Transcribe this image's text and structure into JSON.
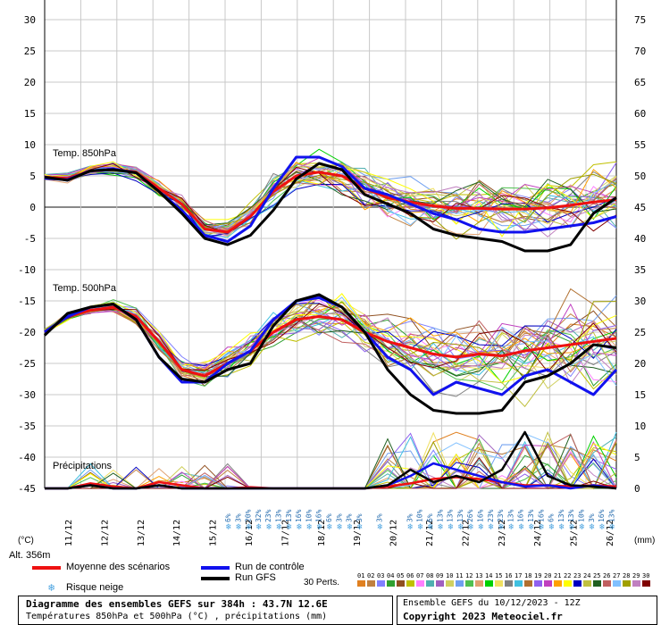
{
  "chart_data": {
    "type": "line",
    "title": "Diagramme des ensembles GEFS sur 384h : 43.7N 12.6E",
    "subtitle": "Températures 850hPa et 500hPa (°C) , précipitations (mm)",
    "x_labels": [
      "11/12",
      "12/12",
      "13/12",
      "14/12",
      "15/12",
      "16/12",
      "17/12",
      "18/12",
      "19/12",
      "20/12",
      "21/12",
      "22/12",
      "23/12",
      "24/12",
      "25/12",
      "26/12"
    ],
    "left_axis": {
      "label": "(°C)",
      "ticks": [
        "30",
        "25",
        "20",
        "15",
        "10",
        "5",
        "0",
        "-5",
        "-10",
        "-15",
        "-20",
        "-25",
        "-30",
        "-35",
        "-40",
        "-45"
      ],
      "range": [
        -45,
        30
      ]
    },
    "right_axis": {
      "label": "(mm)",
      "ticks": [
        "75",
        "70",
        "65",
        "60",
        "55",
        "50",
        "45",
        "40",
        "35",
        "30",
        "25",
        "20",
        "15",
        "10",
        "5",
        "0"
      ],
      "range": [
        0,
        75
      ]
    },
    "panel_labels": {
      "t850": "Temp. 850hPa",
      "t500": "Temp. 500hPa",
      "precip": "Précipitations"
    },
    "altitude": "Alt. 356m",
    "series": [
      {
        "name": "Moyenne des scénarios",
        "panel": "t850",
        "color": "#ee1111",
        "values": [
          4.8,
          4.6,
          5.8,
          6.0,
          5.6,
          3.0,
          0.5,
          -3.5,
          -4.0,
          -1.5,
          2.5,
          5.0,
          5.6,
          5.0,
          3.0,
          1.5,
          0.8,
          0.2,
          -0.2,
          -0.2,
          -0.3,
          -0.3,
          -0.1,
          0.3,
          0.8,
          1.2
        ]
      },
      {
        "name": "Run de contrôle",
        "panel": "t850",
        "color": "#1111ee",
        "values": [
          4.6,
          4.4,
          5.8,
          6.1,
          5.5,
          2.5,
          -0.5,
          -4.5,
          -5.5,
          -3.0,
          3.0,
          8.0,
          8.0,
          6.5,
          3.0,
          2.0,
          0.5,
          -1.0,
          -2.0,
          -3.5,
          -4.0,
          -4.0,
          -3.5,
          -3.0,
          -2.5,
          -1.5
        ]
      },
      {
        "name": "Run GFS",
        "panel": "t850",
        "color": "#000000",
        "values": [
          4.8,
          4.3,
          5.8,
          6.0,
          5.5,
          2.5,
          -1.0,
          -5.0,
          -6.0,
          -4.5,
          -0.5,
          4.5,
          7.0,
          6.0,
          2.0,
          0.5,
          -1.0,
          -3.5,
          -4.5,
          -5.0,
          -5.5,
          -7.0,
          -7.0,
          -6.0,
          -1.0,
          1.5
        ]
      },
      {
        "name": "Moyenne des scénarios",
        "panel": "t500",
        "color": "#ee1111",
        "values": [
          -20.0,
          -17.5,
          -16.5,
          -16.0,
          -17.5,
          -21.5,
          -26.0,
          -27.0,
          -25.0,
          -23.0,
          -20.0,
          -18.0,
          -17.5,
          -18.0,
          -20.0,
          -21.5,
          -22.5,
          -23.5,
          -24.0,
          -23.5,
          -23.8,
          -23.0,
          -22.5,
          -22.0,
          -21.5,
          -21.0
        ]
      },
      {
        "name": "Run de contrôle",
        "panel": "t500",
        "color": "#1111ee",
        "values": [
          -20.0,
          -17.5,
          -16.0,
          -15.5,
          -18.0,
          -24.0,
          -28.0,
          -28.0,
          -25.0,
          -23.0,
          -18.0,
          -15.0,
          -14.5,
          -16.0,
          -20.0,
          -24.0,
          -26.0,
          -30.0,
          -28.0,
          -29.0,
          -30.0,
          -27.0,
          -26.0,
          -28.0,
          -30.0,
          -26.0
        ]
      },
      {
        "name": "Run GFS",
        "panel": "t500",
        "color": "#000000",
        "values": [
          -20.5,
          -17.0,
          -16.0,
          -15.5,
          -18.0,
          -24.0,
          -27.5,
          -28.0,
          -26.0,
          -25.0,
          -19.0,
          -15.0,
          -14.0,
          -16.0,
          -20.0,
          -26.0,
          -30.0,
          -32.5,
          -33.0,
          -33.0,
          -32.5,
          -28.0,
          -27.0,
          -25.0,
          -22.0,
          -22.5
        ]
      }
    ],
    "precip_series": [
      {
        "name": "Moyenne des scénarios",
        "color": "#ee1111",
        "values": [
          0.0,
          0.0,
          0.8,
          0.3,
          0.0,
          1.0,
          0.5,
          0.0,
          0.0,
          0.2,
          0.0,
          0.0,
          0.0,
          0.0,
          0.0,
          0.3,
          0.8,
          1.5,
          1.8,
          1.5,
          1.0,
          0.5,
          0.5,
          0.3,
          0.5,
          0.3
        ]
      },
      {
        "name": "Run de contrôle",
        "color": "#1111ee",
        "values": [
          0.0,
          0.0,
          0.5,
          0.0,
          0.0,
          0.5,
          0.0,
          0.0,
          0.0,
          0.0,
          0.0,
          0.0,
          0.0,
          0.0,
          0.0,
          0.5,
          2.0,
          4.0,
          3.0,
          2.0,
          1.0,
          0.3,
          0.5,
          0.0,
          0.5,
          0.0
        ]
      },
      {
        "name": "Run GFS",
        "color": "#000000",
        "values": [
          0.0,
          0.0,
          0.5,
          0.0,
          0.0,
          0.5,
          0.0,
          0.0,
          0.0,
          0.0,
          0.0,
          0.0,
          0.0,
          0.0,
          0.0,
          0.5,
          3.0,
          1.0,
          2.0,
          1.0,
          3.0,
          9.0,
          2.0,
          0.5,
          0.3,
          0.0
        ]
      }
    ],
    "snow_risk": [
      "6%",
      "3%",
      "20%",
      "32%",
      "23%",
      "13%",
      "13%",
      "16%",
      "10%",
      "16%",
      "6%",
      "3%",
      "3%",
      "3%",
      "",
      "3%",
      "",
      "",
      "3%",
      "10%",
      "6%",
      "13%",
      "13%",
      "13%",
      "26%",
      "16%",
      "23%",
      "23%",
      "13%",
      "16%",
      "13%",
      "16%",
      "6%",
      "13%",
      "13%",
      "10%",
      "3%",
      "16%",
      "13%"
    ],
    "legend": [
      {
        "name": "Moyenne des scénarios",
        "color": "#ee1111"
      },
      {
        "name": "Run de contrôle",
        "color": "#1111ee"
      },
      {
        "name": "Run GFS",
        "color": "#000000"
      }
    ]
  },
  "legend": {
    "mean": "Moyenne des scénarios",
    "control": "Run de contrôle",
    "gfs": "Run GFS",
    "snow": "Risque neige",
    "perts_label": "30 Perts.",
    "pert_numbers": [
      "01",
      "02",
      "03",
      "04",
      "05",
      "06",
      "07",
      "08",
      "09",
      "10",
      "11",
      "12",
      "13",
      "14",
      "15",
      "16",
      "17",
      "18",
      "19",
      "20",
      "21",
      "22",
      "23",
      "24",
      "25",
      "26",
      "27",
      "28",
      "29",
      "30"
    ],
    "pert_colors": [
      "#e08020",
      "#c08040",
      "#8080ff",
      "#30a030",
      "#905020",
      "#c0c000",
      "#ff80ff",
      "#50b0b0",
      "#a060c0",
      "#d0d060",
      "#70a0f0",
      "#50c050",
      "#e0a070",
      "#00d000",
      "#f0e060",
      "#808080",
      "#40c0e0",
      "#b07030",
      "#9060f0",
      "#c040c0",
      "#ffa000",
      "#ffff00",
      "#0000c0",
      "#c0c040",
      "#206020",
      "#c06060",
      "#80c0ff",
      "#a0a000",
      "#c080c0",
      "#800000"
    ]
  },
  "footer": {
    "line1": "Diagramme des ensembles GEFS sur 384h : 43.7N 12.6E",
    "line2": "Températures 850hPa et 500hPa (°C) , précipitations (mm)",
    "ensemble": "Ensemble GEFS du 10/12/2023 - 12Z",
    "copyright": "Copyright 2023 Meteociel.fr"
  }
}
